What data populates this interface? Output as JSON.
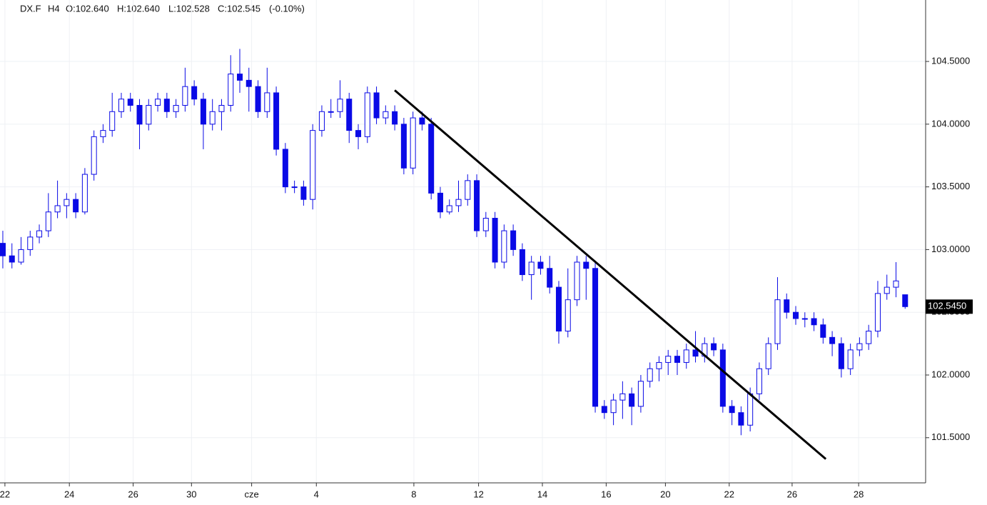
{
  "chart_data": {
    "type": "candlestick",
    "symbol": "DX.F",
    "timeframe": "H4",
    "open_label": "O:102.640",
    "high_label": "H:102.640",
    "low_label": "L:102.528",
    "close_label": "C:102.545",
    "change_label": "(-0.10%)",
    "color": "#0a0ae6",
    "grid": true,
    "xlim": [
      -0.31,
      101.25
    ],
    "ylim": [
      101.14,
      104.99
    ],
    "yticks": [
      {
        "value": 101.5,
        "label": "101.5000"
      },
      {
        "value": 102.0,
        "label": "102.0000"
      },
      {
        "value": 102.5,
        "label": "102.5000"
      },
      {
        "value": 103.0,
        "label": "103.0000"
      },
      {
        "value": 103.5,
        "label": "103.5000"
      },
      {
        "value": 104.0,
        "label": "104.0000"
      },
      {
        "value": 104.5,
        "label": "104.5000"
      }
    ],
    "xticks": [
      {
        "value": 0.23,
        "label": "22"
      },
      {
        "value": 7.3,
        "label": "24"
      },
      {
        "value": 14.3,
        "label": "26"
      },
      {
        "value": 20.7,
        "label": "30"
      },
      {
        "value": 27.3,
        "label": "cze"
      },
      {
        "value": 34.4,
        "label": "4"
      },
      {
        "value": 45.1,
        "label": "8"
      },
      {
        "value": 52.2,
        "label": "12"
      },
      {
        "value": 59.2,
        "label": "14"
      },
      {
        "value": 66.2,
        "label": "16"
      },
      {
        "value": 72.7,
        "label": "20"
      },
      {
        "value": 79.7,
        "label": "22"
      },
      {
        "value": 86.6,
        "label": "26"
      },
      {
        "value": 93.9,
        "label": "28"
      }
    ],
    "last_price": {
      "value": 102.545,
      "label": "102.5450"
    },
    "trendline": {
      "x": [
        43,
        90.3
      ],
      "y": [
        104.27,
        101.33
      ]
    },
    "candles": [
      [
        103.05,
        103.15,
        102.85,
        102.95
      ],
      [
        102.95,
        103.05,
        102.85,
        102.9
      ],
      [
        102.9,
        103.1,
        102.88,
        103.0
      ],
      [
        103.0,
        103.15,
        102.95,
        103.1
      ],
      [
        103.1,
        103.2,
        103.05,
        103.15
      ],
      [
        103.15,
        103.45,
        103.1,
        103.3
      ],
      [
        103.3,
        103.55,
        103.25,
        103.35
      ],
      [
        103.35,
        103.45,
        103.25,
        103.4
      ],
      [
        103.4,
        103.45,
        103.25,
        103.3
      ],
      [
        103.3,
        103.65,
        103.28,
        103.6
      ],
      [
        103.6,
        103.95,
        103.55,
        103.9
      ],
      [
        103.9,
        104.0,
        103.85,
        103.95
      ],
      [
        103.95,
        104.25,
        103.9,
        104.1
      ],
      [
        104.1,
        104.25,
        104.05,
        104.2
      ],
      [
        104.2,
        104.25,
        104.1,
        104.15
      ],
      [
        104.15,
        104.2,
        103.8,
        104.0
      ],
      [
        104.0,
        104.2,
        103.95,
        104.15
      ],
      [
        104.15,
        104.25,
        104.1,
        104.2
      ],
      [
        104.2,
        104.25,
        104.05,
        104.1
      ],
      [
        104.1,
        104.2,
        104.05,
        104.15
      ],
      [
        104.15,
        104.45,
        104.1,
        104.3
      ],
      [
        104.3,
        104.35,
        104.15,
        104.2
      ],
      [
        104.2,
        104.25,
        103.8,
        104.0
      ],
      [
        104.0,
        104.2,
        103.95,
        104.1
      ],
      [
        104.1,
        104.2,
        103.95,
        104.15
      ],
      [
        104.15,
        104.55,
        104.1,
        104.4
      ],
      [
        104.4,
        104.6,
        104.25,
        104.35
      ],
      [
        104.35,
        104.45,
        104.1,
        104.3
      ],
      [
        104.3,
        104.35,
        104.05,
        104.1
      ],
      [
        104.1,
        104.45,
        104.05,
        104.25
      ],
      [
        104.25,
        104.3,
        103.75,
        103.8
      ],
      [
        103.8,
        103.85,
        103.45,
        103.5
      ],
      [
        103.5,
        103.55,
        103.45,
        103.5
      ],
      [
        103.5,
        103.55,
        103.35,
        103.4
      ],
      [
        103.4,
        104.0,
        103.32,
        103.95
      ],
      [
        103.95,
        104.15,
        103.9,
        104.1
      ],
      [
        104.1,
        104.2,
        104.05,
        104.1
      ],
      [
        104.1,
        104.35,
        104.05,
        104.2
      ],
      [
        104.2,
        104.25,
        103.85,
        103.95
      ],
      [
        103.95,
        104.0,
        103.8,
        103.9
      ],
      [
        103.9,
        104.3,
        103.85,
        104.25
      ],
      [
        104.25,
        104.3,
        104.0,
        104.05
      ],
      [
        104.05,
        104.15,
        104.0,
        104.1
      ],
      [
        104.1,
        104.15,
        103.95,
        104.0
      ],
      [
        104.0,
        104.05,
        103.6,
        103.65
      ],
      [
        103.65,
        104.1,
        103.6,
        104.05
      ],
      [
        104.05,
        104.1,
        103.95,
        104.0
      ],
      [
        104.0,
        104.05,
        103.4,
        103.45
      ],
      [
        103.45,
        103.5,
        103.25,
        103.3
      ],
      [
        103.3,
        103.4,
        103.28,
        103.35
      ],
      [
        103.35,
        103.55,
        103.3,
        103.4
      ],
      [
        103.4,
        103.6,
        103.35,
        103.55
      ],
      [
        103.55,
        103.6,
        103.1,
        103.15
      ],
      [
        103.15,
        103.3,
        103.1,
        103.25
      ],
      [
        103.25,
        103.3,
        102.85,
        102.9
      ],
      [
        102.9,
        103.2,
        102.85,
        103.15
      ],
      [
        103.15,
        103.2,
        102.95,
        103.0
      ],
      [
        103.0,
        103.05,
        102.75,
        102.8
      ],
      [
        102.8,
        102.95,
        102.6,
        102.9
      ],
      [
        102.9,
        102.95,
        102.8,
        102.85
      ],
      [
        102.85,
        102.95,
        102.65,
        102.7
      ],
      [
        102.7,
        102.75,
        102.25,
        102.35
      ],
      [
        102.35,
        102.85,
        102.3,
        102.6
      ],
      [
        102.6,
        102.95,
        102.55,
        102.9
      ],
      [
        102.9,
        102.95,
        102.6,
        102.85
      ],
      [
        102.85,
        102.9,
        101.7,
        101.75
      ],
      [
        101.75,
        101.8,
        101.65,
        101.7
      ],
      [
        101.7,
        101.85,
        101.6,
        101.8
      ],
      [
        101.8,
        101.95,
        101.65,
        101.85
      ],
      [
        101.85,
        101.9,
        101.6,
        101.75
      ],
      [
        101.75,
        102.0,
        101.7,
        101.95
      ],
      [
        101.95,
        102.1,
        101.9,
        102.05
      ],
      [
        102.05,
        102.15,
        101.95,
        102.1
      ],
      [
        102.1,
        102.2,
        102.0,
        102.15
      ],
      [
        102.15,
        102.2,
        102.0,
        102.1
      ],
      [
        102.1,
        102.25,
        102.05,
        102.2
      ],
      [
        102.2,
        102.35,
        102.1,
        102.15
      ],
      [
        102.15,
        102.3,
        102.1,
        102.25
      ],
      [
        102.25,
        102.3,
        102.15,
        102.2
      ],
      [
        102.2,
        102.25,
        101.7,
        101.75
      ],
      [
        101.75,
        101.8,
        101.6,
        101.7
      ],
      [
        101.7,
        101.75,
        101.52,
        101.6
      ],
      [
        101.6,
        101.9,
        101.55,
        101.85
      ],
      [
        101.85,
        102.1,
        101.8,
        102.05
      ],
      [
        102.05,
        102.3,
        102.0,
        102.25
      ],
      [
        102.25,
        102.78,
        102.2,
        102.6
      ],
      [
        102.6,
        102.65,
        102.45,
        102.5
      ],
      [
        102.5,
        102.55,
        102.4,
        102.45
      ],
      [
        102.45,
        102.5,
        102.38,
        102.45
      ],
      [
        102.45,
        102.5,
        102.35,
        102.4
      ],
      [
        102.4,
        102.45,
        102.25,
        102.3
      ],
      [
        102.3,
        102.35,
        102.15,
        102.25
      ],
      [
        102.25,
        102.3,
        101.98,
        102.05
      ],
      [
        102.05,
        102.25,
        102.0,
        102.2
      ],
      [
        102.2,
        102.3,
        102.15,
        102.25
      ],
      [
        102.25,
        102.4,
        102.2,
        102.35
      ],
      [
        102.35,
        102.75,
        102.3,
        102.65
      ],
      [
        102.65,
        102.8,
        102.6,
        102.7
      ],
      [
        102.7,
        102.9,
        102.62,
        102.75
      ],
      [
        102.64,
        102.64,
        102.528,
        102.545
      ]
    ]
  }
}
